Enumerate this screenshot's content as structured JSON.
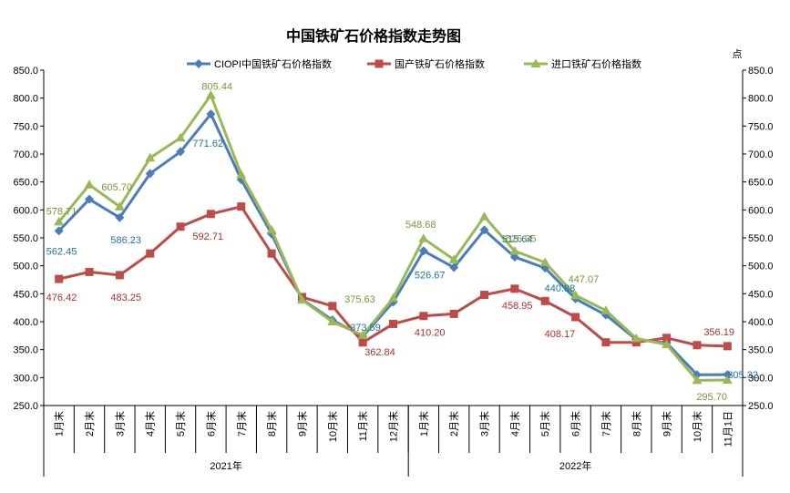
{
  "chart_data": {
    "type": "line",
    "title": "中国铁矿石价格指数走势图",
    "right_axis_unit": "点",
    "ylim": [
      250,
      850
    ],
    "y_ticks": [
      "250.0",
      "300.0",
      "350.0",
      "400.0",
      "450.0",
      "500.0",
      "550.0",
      "600.0",
      "650.0",
      "700.0",
      "750.0",
      "800.0",
      "850.0"
    ],
    "y_ticks_right": [
      "250.0",
      "300.0",
      "350.0",
      "400.0",
      "450.0",
      "500.0",
      "550.0",
      "600.0",
      "650.0",
      "700.0",
      "750.0",
      "800.0",
      "850.0"
    ],
    "categories": [
      "1月末",
      "2月末",
      "3月末",
      "4月末",
      "5月末",
      "6月末",
      "7月末",
      "8月末",
      "9月末",
      "10月末",
      "11月末",
      "12月末",
      "1月末",
      "2月末",
      "3月末",
      "4月末",
      "5月末",
      "6月末",
      "7月末",
      "8月末",
      "9月末",
      "10月末",
      "11月1日"
    ],
    "year_groups": [
      {
        "label": "2021年",
        "count": 12
      },
      {
        "label": "2022年",
        "count": 11
      }
    ],
    "legend_position": "top",
    "grid": false,
    "series": [
      {
        "name": "CIOPI中国铁矿石价格指数",
        "color": "#4a7ebb",
        "marker": "diamond",
        "values": [
          562.45,
          619,
          586.23,
          665,
          704,
          771.62,
          654,
          557,
          440,
          403,
          373.59,
          435,
          526.67,
          497,
          564,
          515.64,
          496,
          440.88,
          412,
          368,
          362,
          305,
          305.32
        ],
        "labels": [
          {
            "index": 0,
            "text": "562.45"
          },
          {
            "index": 2,
            "text": "586.23"
          },
          {
            "index": 5,
            "text": "771.62"
          },
          {
            "index": 10,
            "text": "373.59"
          },
          {
            "index": 12,
            "text": "526.67"
          },
          {
            "index": 15,
            "text": "515.64"
          },
          {
            "index": 17,
            "text": "440.88"
          },
          {
            "index": 22,
            "text": "305.32"
          }
        ]
      },
      {
        "name": "国产铁矿石价格指数",
        "color": "#be4b48",
        "marker": "square",
        "values": [
          476.42,
          489,
          483.25,
          522,
          570,
          592.71,
          606,
          522,
          444,
          428,
          362.84,
          396,
          410.2,
          414,
          448,
          458.95,
          437,
          408.17,
          363,
          363,
          371,
          358,
          356.19
        ],
        "labels": [
          {
            "index": 0,
            "text": "476.42"
          },
          {
            "index": 2,
            "text": "483.25"
          },
          {
            "index": 5,
            "text": "592.71"
          },
          {
            "index": 10,
            "text": "362.84"
          },
          {
            "index": 12,
            "text": "410.20"
          },
          {
            "index": 15,
            "text": "458.95"
          },
          {
            "index": 17,
            "text": "408.17"
          },
          {
            "index": 22,
            "text": "356.19"
          }
        ]
      },
      {
        "name": "进口铁矿石价格指数",
        "color": "#98b954",
        "marker": "triangle",
        "values": [
          578.71,
          645,
          605.7,
          693,
          729,
          805.44,
          663,
          564,
          439,
          400,
          375.63,
          442,
          548.68,
          511,
          588,
          526.35,
          506,
          447.07,
          420,
          370,
          359,
          295,
          295.7
        ],
        "labels": [
          {
            "index": 0,
            "text": "578.71"
          },
          {
            "index": 2,
            "text": "605.70"
          },
          {
            "index": 5,
            "text": "805.44"
          },
          {
            "index": 10,
            "text": "375.63"
          },
          {
            "index": 12,
            "text": "548.68"
          },
          {
            "index": 15,
            "text": "526.35"
          },
          {
            "index": 17,
            "text": "447.07"
          },
          {
            "index": 22,
            "text": "295.70"
          }
        ]
      }
    ]
  }
}
